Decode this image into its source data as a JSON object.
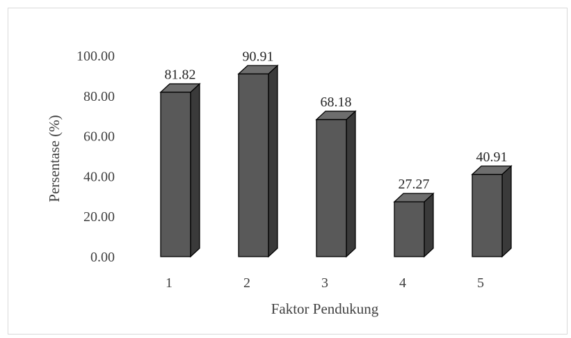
{
  "chart_data": {
    "type": "bar",
    "title": "",
    "xlabel": "Faktor Pendukung",
    "ylabel": "Persentase (%)",
    "categories": [
      "1",
      "2",
      "3",
      "4",
      "5"
    ],
    "values": [
      81.82,
      90.91,
      68.18,
      27.27,
      40.91
    ],
    "value_labels": [
      "81.82",
      "90.91",
      "68.18",
      "27.27",
      "40.91"
    ],
    "yticks": [
      "0.00",
      "20.00",
      "40.00",
      "60.00",
      "80.00",
      "100.00"
    ],
    "ylim": [
      0,
      100
    ],
    "grid": false,
    "legend": "none",
    "bar_style": "3d-column",
    "colors": {
      "bar_front": "#595959",
      "bar_side": "#3a3a3a",
      "bar_top": "#6e6e6e",
      "bar_outline": "#000000",
      "frame": "#d9d9d9",
      "text": "#404040"
    }
  }
}
